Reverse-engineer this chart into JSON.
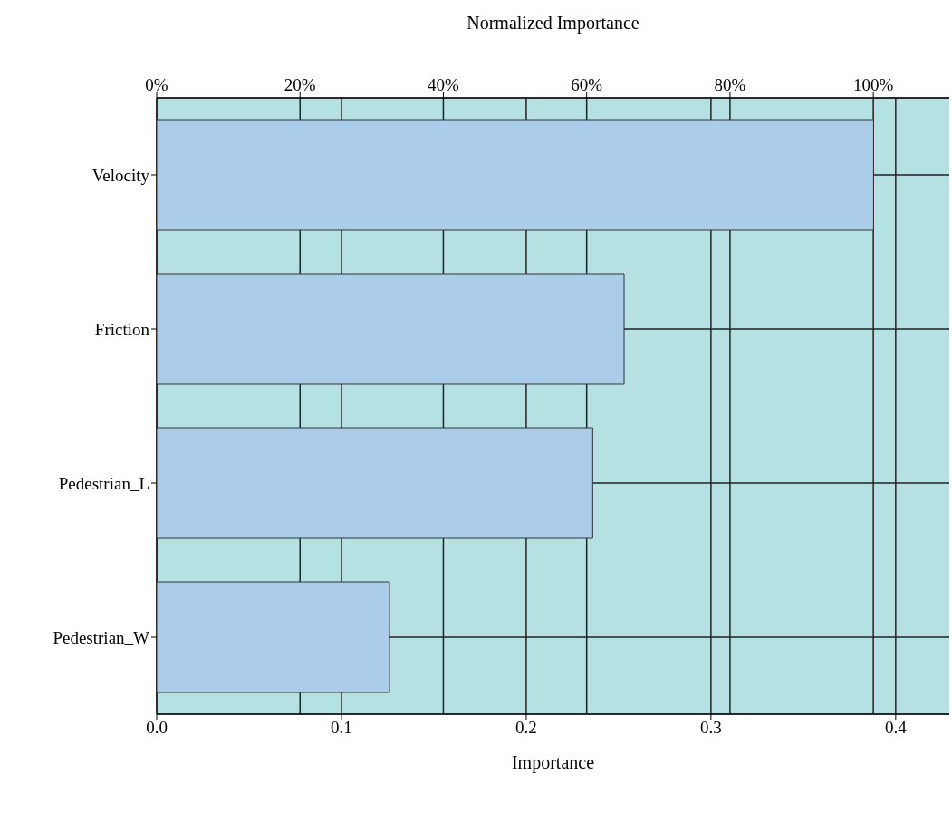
{
  "chart_data": {
    "type": "bar",
    "orientation": "horizontal",
    "xlabel": "Importance",
    "x2label": "Normalized Importance",
    "categories": [
      "Velocity",
      "Friction",
      "Pedestrian_L",
      "Pedestrian_W"
    ],
    "values": [
      0.388,
      0.253,
      0.236,
      0.126
    ],
    "color": "#abcdea",
    "xlim": [
      0,
      0.429
    ],
    "xticks": [
      {
        "value": 0,
        "label": "0.0"
      },
      0.1,
      0.2,
      0.3,
      0.4
    ],
    "x2lim": [
      0,
      110.6
    ],
    "x2ticks": [
      {
        "value": 0,
        "label": "0%"
      },
      {
        "value": 20,
        "label": "20%"
      },
      {
        "value": 40,
        "label": "40%"
      },
      {
        "value": 60,
        "label": "60%"
      },
      {
        "value": 80,
        "label": "80%"
      },
      {
        "value": 100,
        "label": "100%"
      }
    ],
    "grid": true
  }
}
